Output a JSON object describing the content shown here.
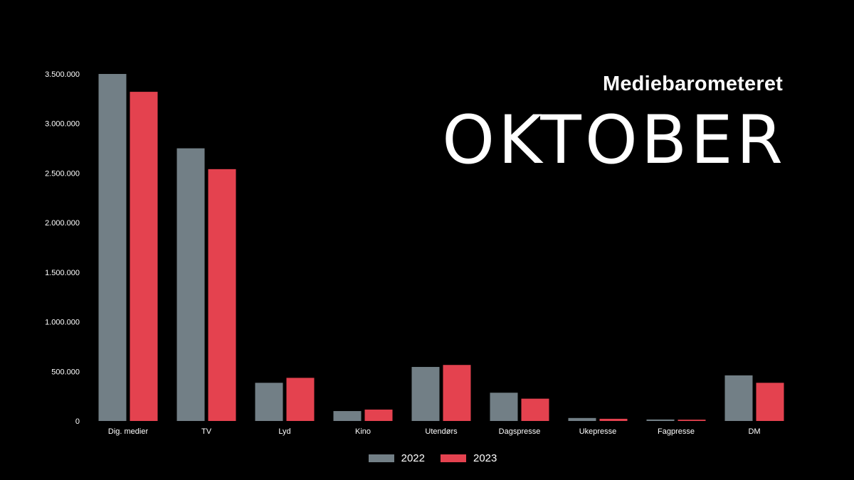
{
  "header": {
    "subtitle": "Mediebarometeret",
    "title": "OKTOBER"
  },
  "colors": {
    "background": "#000000",
    "series_2022": "#727f86",
    "series_2023": "#e4424f",
    "text": "#ffffff"
  },
  "chart_data": {
    "type": "bar",
    "categories": [
      "Dig. medier",
      "TV",
      "Lyd",
      "Kino",
      "Utendørs",
      "Dagspresse",
      "Ukepresse",
      "Fagpresse",
      "DM"
    ],
    "series": [
      {
        "name": "2022",
        "values": [
          3500000,
          2750000,
          385000,
          100000,
          545000,
          285000,
          30000,
          15000,
          460000
        ]
      },
      {
        "name": "2023",
        "values": [
          3320000,
          2540000,
          435000,
          115000,
          565000,
          225000,
          22000,
          13000,
          385000
        ]
      }
    ],
    "yticks": [
      "0",
      "500.000",
      "1.000.000",
      "1.500.000",
      "2.000.000",
      "2.500.000",
      "3.000.000",
      "3.500.000"
    ],
    "ylim": [
      0,
      3500000
    ],
    "grid": false,
    "legend_position": "bottom-center"
  }
}
